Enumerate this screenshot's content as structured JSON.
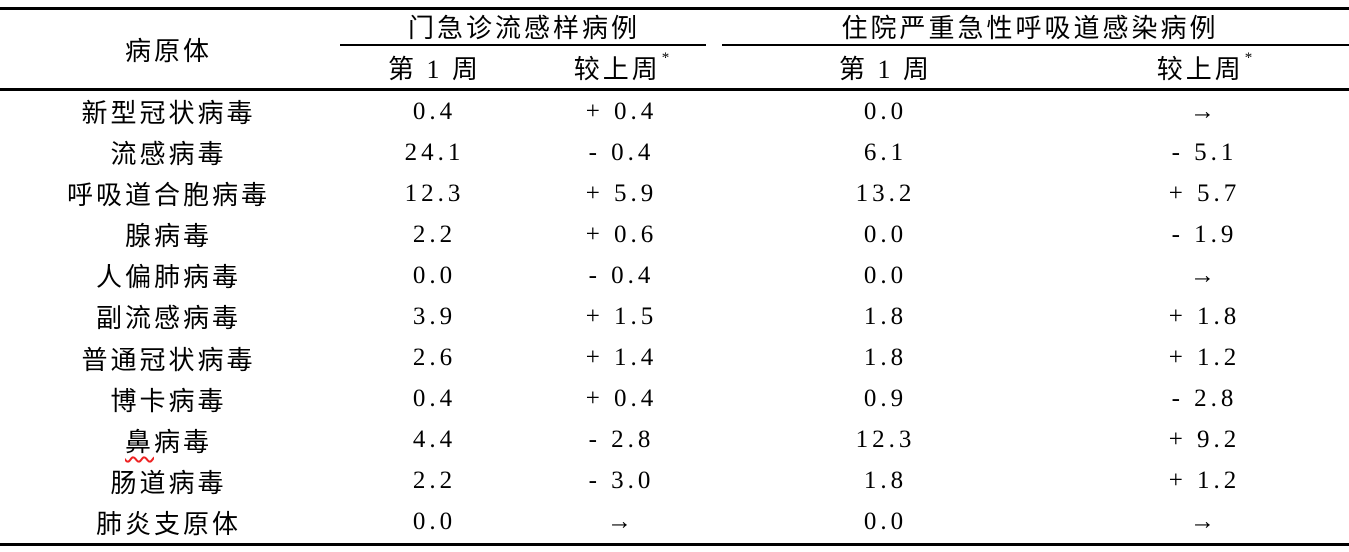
{
  "table": {
    "col_header": "病原体",
    "groups": [
      {
        "label": "门急诊流感样病例",
        "sub": [
          {
            "label": "第 1 周"
          },
          {
            "label": "较上周",
            "sup": "*"
          }
        ]
      },
      {
        "label": "住院严重急性呼吸道感染病例",
        "sub": [
          {
            "label": "第 1 周"
          },
          {
            "label": "较上周",
            "sup": "*"
          }
        ]
      }
    ],
    "rows": [
      {
        "label": "新型冠状病毒",
        "ili_week": "0.4",
        "ili_change": "+ 0.4",
        "sari_week": "0.0",
        "sari_change": "→"
      },
      {
        "label": "流感病毒",
        "ili_week": "24.1",
        "ili_change": "- 0.4",
        "sari_week": "6.1",
        "sari_change": "- 5.1"
      },
      {
        "label": "呼吸道合胞病毒",
        "ili_week": "12.3",
        "ili_change": "+ 5.9",
        "sari_week": "13.2",
        "sari_change": "+ 5.7"
      },
      {
        "label": "腺病毒",
        "ili_week": "2.2",
        "ili_change": "+ 0.6",
        "sari_week": "0.0",
        "sari_change": "- 1.9"
      },
      {
        "label": "人偏肺病毒",
        "ili_week": "0.0",
        "ili_change": "- 0.4",
        "sari_week": "0.0",
        "sari_change": "→"
      },
      {
        "label": "副流感病毒",
        "ili_week": "3.9",
        "ili_change": "+ 1.5",
        "sari_week": "1.8",
        "sari_change": "+ 1.8"
      },
      {
        "label": "普通冠状病毒",
        "ili_week": "2.6",
        "ili_change": "+ 1.4",
        "sari_week": "1.8",
        "sari_change": "+ 1.2"
      },
      {
        "label": "博卡病毒",
        "ili_week": "0.4",
        "ili_change": "+ 0.4",
        "sari_week": "0.9",
        "sari_change": "- 2.8"
      },
      {
        "label": "鼻病毒",
        "label_parts": {
          "marked": "鼻",
          "rest": "病毒"
        },
        "ili_week": "4.4",
        "ili_change": "- 2.8",
        "sari_week": "12.3",
        "sari_change": "+ 9.2"
      },
      {
        "label": "肠道病毒",
        "ili_week": "2.2",
        "ili_change": "- 3.0",
        "sari_week": "1.8",
        "sari_change": "+ 1.2"
      },
      {
        "label": "肺炎支原体",
        "ili_week": "0.0",
        "ili_change": "→",
        "sari_week": "0.0",
        "sari_change": "→"
      }
    ],
    "colors": {
      "text": "#000000",
      "line": "#000000",
      "spellcheck_underline": "#ee2222"
    }
  }
}
